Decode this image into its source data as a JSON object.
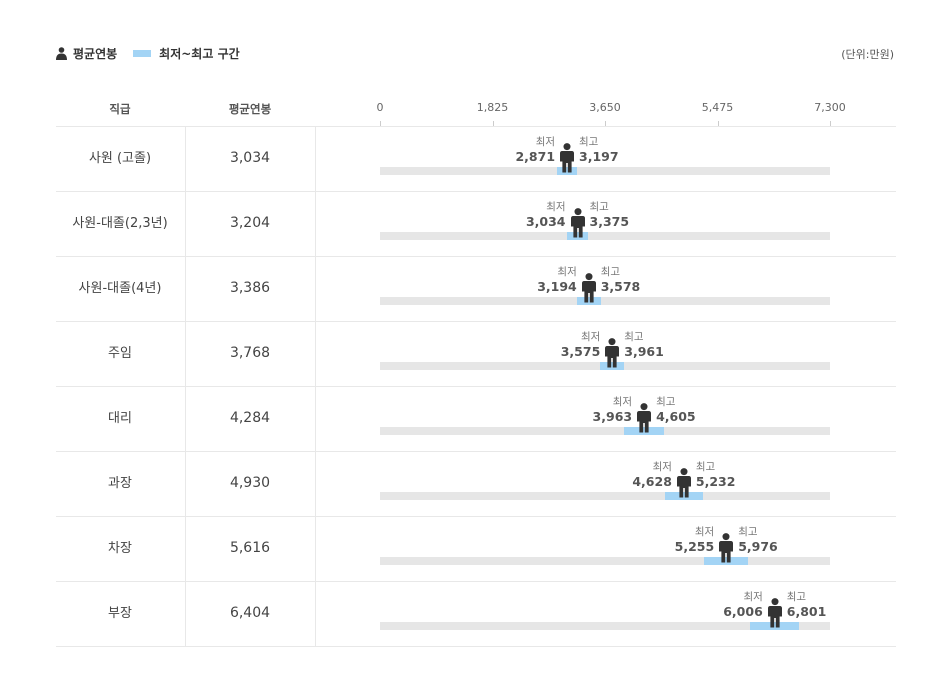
{
  "legend": {
    "average_label": "평균연봉",
    "range_label": "최저~최고 구간",
    "unit_label": "(단위:만원)"
  },
  "headers": {
    "rank": "직급",
    "average": "평균연봉"
  },
  "labels": {
    "min": "최저",
    "max": "최고"
  },
  "colors": {
    "range": "#a3d4f5",
    "track": "#e6e6e6",
    "person": "#333333"
  },
  "chart_data": {
    "type": "range-dot",
    "xlim": [
      0,
      7300
    ],
    "ticks": [
      "0",
      "1,825",
      "3,650",
      "5,475",
      "7,300"
    ],
    "tick_values": [
      0,
      1825,
      3650,
      5475,
      7300
    ],
    "rows": [
      {
        "rank": "사원 (고졸)",
        "avg": 3034,
        "avg_label": "3,034",
        "min": 2871,
        "min_label": "2,871",
        "max": 3197,
        "max_label": "3,197"
      },
      {
        "rank": "사원-대졸(2,3년)",
        "avg": 3204,
        "avg_label": "3,204",
        "min": 3034,
        "min_label": "3,034",
        "max": 3375,
        "max_label": "3,375"
      },
      {
        "rank": "사원-대졸(4년)",
        "avg": 3386,
        "avg_label": "3,386",
        "min": 3194,
        "min_label": "3,194",
        "max": 3578,
        "max_label": "3,578"
      },
      {
        "rank": "주임",
        "avg": 3768,
        "avg_label": "3,768",
        "min": 3575,
        "min_label": "3,575",
        "max": 3961,
        "max_label": "3,961"
      },
      {
        "rank": "대리",
        "avg": 4284,
        "avg_label": "4,284",
        "min": 3963,
        "min_label": "3,963",
        "max": 4605,
        "max_label": "4,605"
      },
      {
        "rank": "과장",
        "avg": 4930,
        "avg_label": "4,930",
        "min": 4628,
        "min_label": "4,628",
        "max": 5232,
        "max_label": "5,232"
      },
      {
        "rank": "차장",
        "avg": 5616,
        "avg_label": "5,616",
        "min": 5255,
        "min_label": "5,255",
        "max": 5976,
        "max_label": "5,976"
      },
      {
        "rank": "부장",
        "avg": 6404,
        "avg_label": "6,404",
        "min": 6006,
        "min_label": "6,006",
        "max": 6801,
        "max_label": "6,801"
      }
    ]
  }
}
